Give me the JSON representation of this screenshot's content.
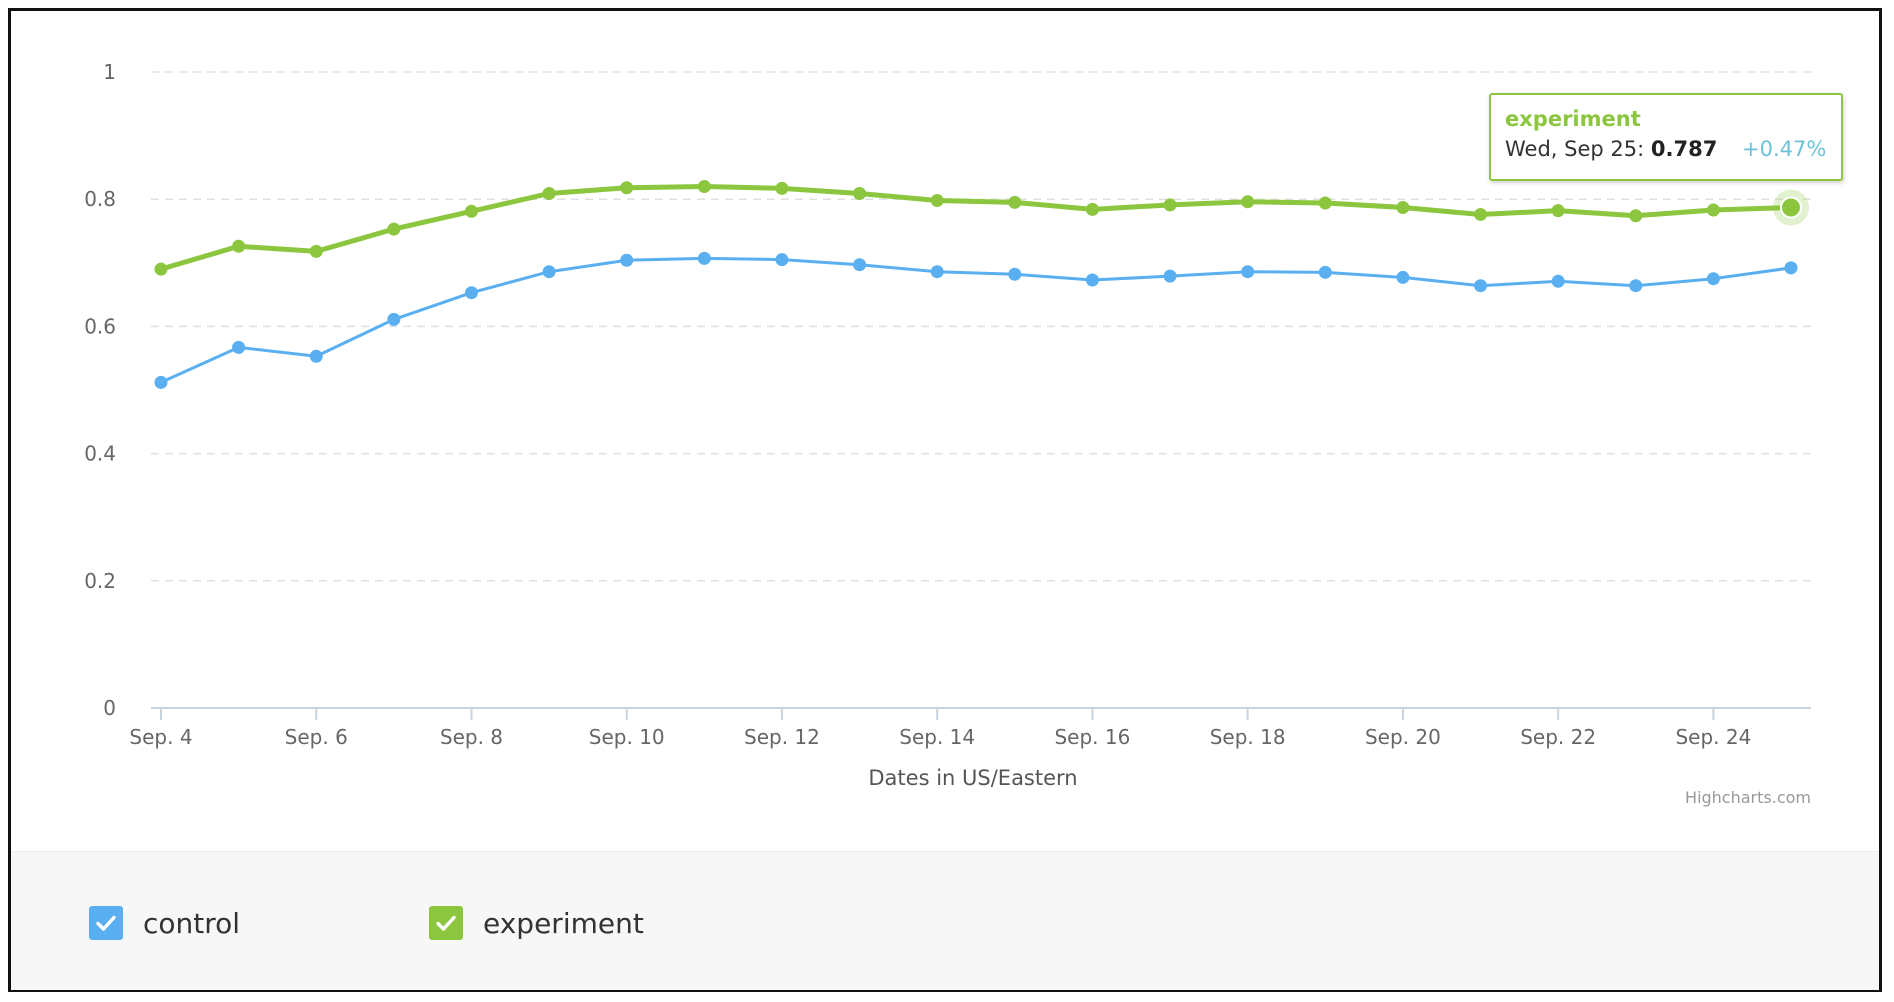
{
  "chart_data": {
    "type": "line",
    "xlabel": "Dates in US/Eastern",
    "ylabel": "",
    "ylim": [
      0,
      1
    ],
    "yticks": [
      "0",
      "0.2",
      "0.4",
      "0.6",
      "0.8",
      "1"
    ],
    "x": [
      4,
      5,
      6,
      7,
      8,
      9,
      10,
      11,
      12,
      13,
      14,
      15,
      16,
      17,
      18,
      19,
      20,
      21,
      22,
      23,
      24,
      25
    ],
    "xticks": [
      {
        "day": 4,
        "label": "Sep. 4"
      },
      {
        "day": 6,
        "label": "Sep. 6"
      },
      {
        "day": 8,
        "label": "Sep. 8"
      },
      {
        "day": 10,
        "label": "Sep. 10"
      },
      {
        "day": 12,
        "label": "Sep. 12"
      },
      {
        "day": 14,
        "label": "Sep. 14"
      },
      {
        "day": 16,
        "label": "Sep. 16"
      },
      {
        "day": 18,
        "label": "Sep. 18"
      },
      {
        "day": 20,
        "label": "Sep. 20"
      },
      {
        "day": 22,
        "label": "Sep. 22"
      },
      {
        "day": 24,
        "label": "Sep. 24"
      }
    ],
    "grid": true,
    "legend_position": "bottom",
    "series": [
      {
        "name": "control",
        "color": "#5aaff0",
        "values": [
          0.512,
          0.567,
          0.553,
          0.611,
          0.653,
          0.686,
          0.704,
          0.707,
          0.705,
          0.697,
          0.686,
          0.682,
          0.673,
          0.679,
          0.686,
          0.685,
          0.677,
          0.664,
          0.671,
          0.664,
          0.675,
          0.692
        ]
      },
      {
        "name": "experiment",
        "color": "#8cc63e",
        "values": [
          0.69,
          0.726,
          0.718,
          0.753,
          0.781,
          0.809,
          0.818,
          0.82,
          0.817,
          0.809,
          0.798,
          0.795,
          0.784,
          0.791,
          0.796,
          0.794,
          0.787,
          0.776,
          0.782,
          0.774,
          0.783,
          0.787
        ]
      }
    ],
    "credit": "Highcharts.com",
    "tooltip": {
      "series": "experiment",
      "date_label": "Wed, Sep 25:",
      "value": "0.787",
      "delta": "+0.47%"
    }
  },
  "legend": [
    {
      "name": "control",
      "color": "#5aaff0",
      "checked": true
    },
    {
      "name": "experiment",
      "color": "#8cc63e",
      "checked": true
    }
  ]
}
